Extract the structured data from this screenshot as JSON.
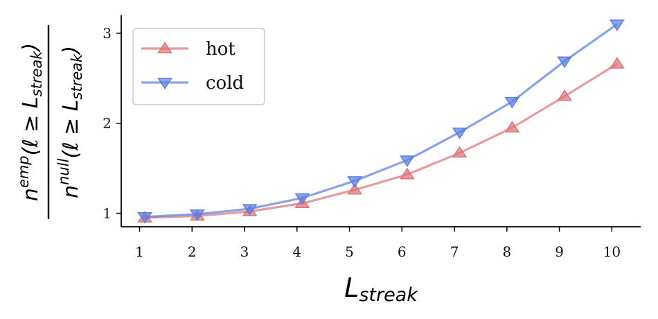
{
  "chart_data": {
    "type": "line",
    "x": [
      1.1,
      2.1,
      3.1,
      4.1,
      5.1,
      6.1,
      7.1,
      8.1,
      9.1,
      10.1
    ],
    "xticks": [
      1,
      2,
      3,
      4,
      5,
      6,
      7,
      8,
      9,
      10
    ],
    "yticks": [
      1,
      2,
      3
    ],
    "xlim": [
      0.65,
      10.55
    ],
    "ylim": [
      0.85,
      3.2
    ],
    "xlabel": {
      "main": "L",
      "sub": "streak"
    },
    "ylabel": {
      "numerator": {
        "base": "n",
        "sup": "emp",
        "tail": "(ℓ ≥ L",
        "sub": "streak",
        "close": ")"
      },
      "denominator": {
        "base": "n",
        "sup": "null",
        "tail": "(ℓ ≥ L",
        "sub": "streak",
        "close": ")"
      }
    },
    "grid": false,
    "legend_position": "top-left",
    "series": [
      {
        "name": "hot",
        "marker": "triangle-up",
        "color": "#d9767a",
        "values": [
          0.95,
          0.97,
          1.02,
          1.11,
          1.26,
          1.43,
          1.67,
          1.95,
          2.3,
          2.66
        ]
      },
      {
        "name": "cold",
        "marker": "triangle-down",
        "color": "#5b7fe0",
        "values": [
          0.96,
          0.99,
          1.05,
          1.17,
          1.36,
          1.59,
          1.9,
          2.24,
          2.69,
          3.1
        ]
      }
    ]
  }
}
